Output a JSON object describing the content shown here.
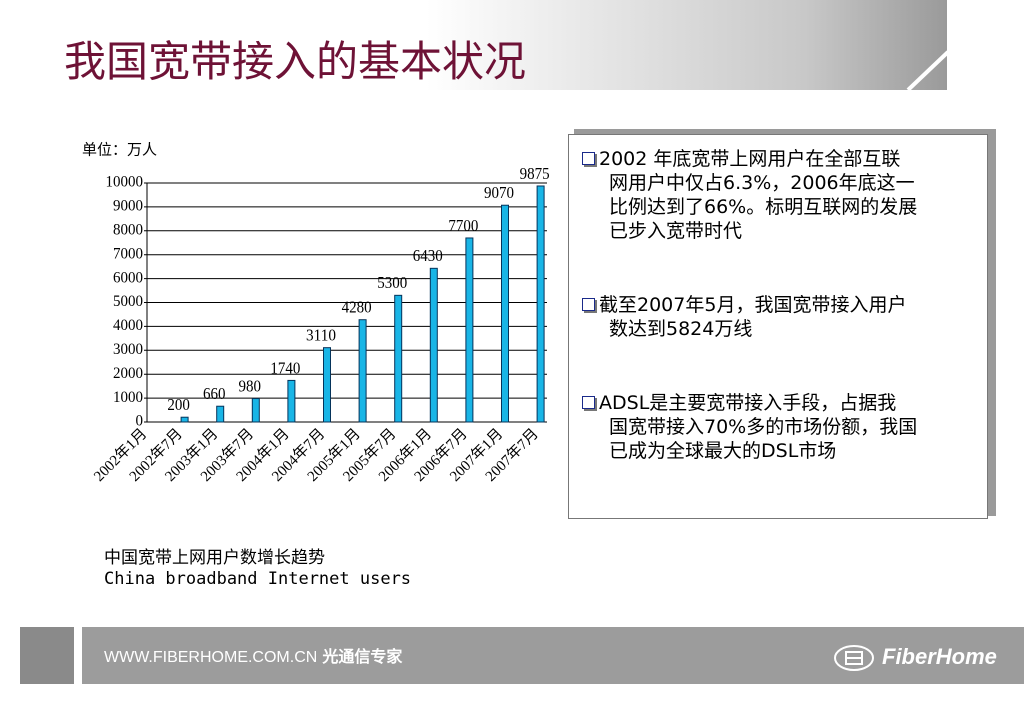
{
  "title": "我国宽带接入的基本状况",
  "chart_data": {
    "type": "bar",
    "unit_label": "单位：万人",
    "categories": [
      "2002年1月",
      "2002年7月",
      "2003年1月",
      "2003年7月",
      "2004年1月",
      "2004年7月",
      "2005年1月",
      "2005年7月",
      "2006年1月",
      "2006年7月",
      "2007年1月",
      "2007年7月"
    ],
    "values": [
      null,
      200,
      660,
      980,
      1740,
      3110,
      4280,
      5300,
      6430,
      7700,
      9070,
      9875
    ],
    "color": "#19b5e6",
    "ylim": [
      0,
      10000
    ],
    "yticks": [
      0,
      1000,
      2000,
      3000,
      4000,
      5000,
      6000,
      7000,
      8000,
      9000,
      10000
    ],
    "grid": true,
    "caption": [
      "中国宽带上网用户数增长趋势",
      "China broadband Internet users"
    ]
  },
  "bullets": [
    [
      "2002 年底宽带上网用户在全部互联",
      "网用户中仅占6.3%，2006年底这一",
      "比例达到了66%。标明互联网的发展",
      "已步入宽带时代"
    ],
    [
      "截至2007年5月，我国宽带接入用户",
      "数达到5824万线"
    ],
    [
      "ADSL是主要宽带接入手段，占据我",
      "国宽带接入70%多的市场份额，我国",
      "已成为全球最大的DSL市场"
    ]
  ],
  "footer": {
    "url": "WWW.FIBERHOME.COM.CN",
    "slogan": "光通信专家",
    "logo": "FiberHome"
  }
}
